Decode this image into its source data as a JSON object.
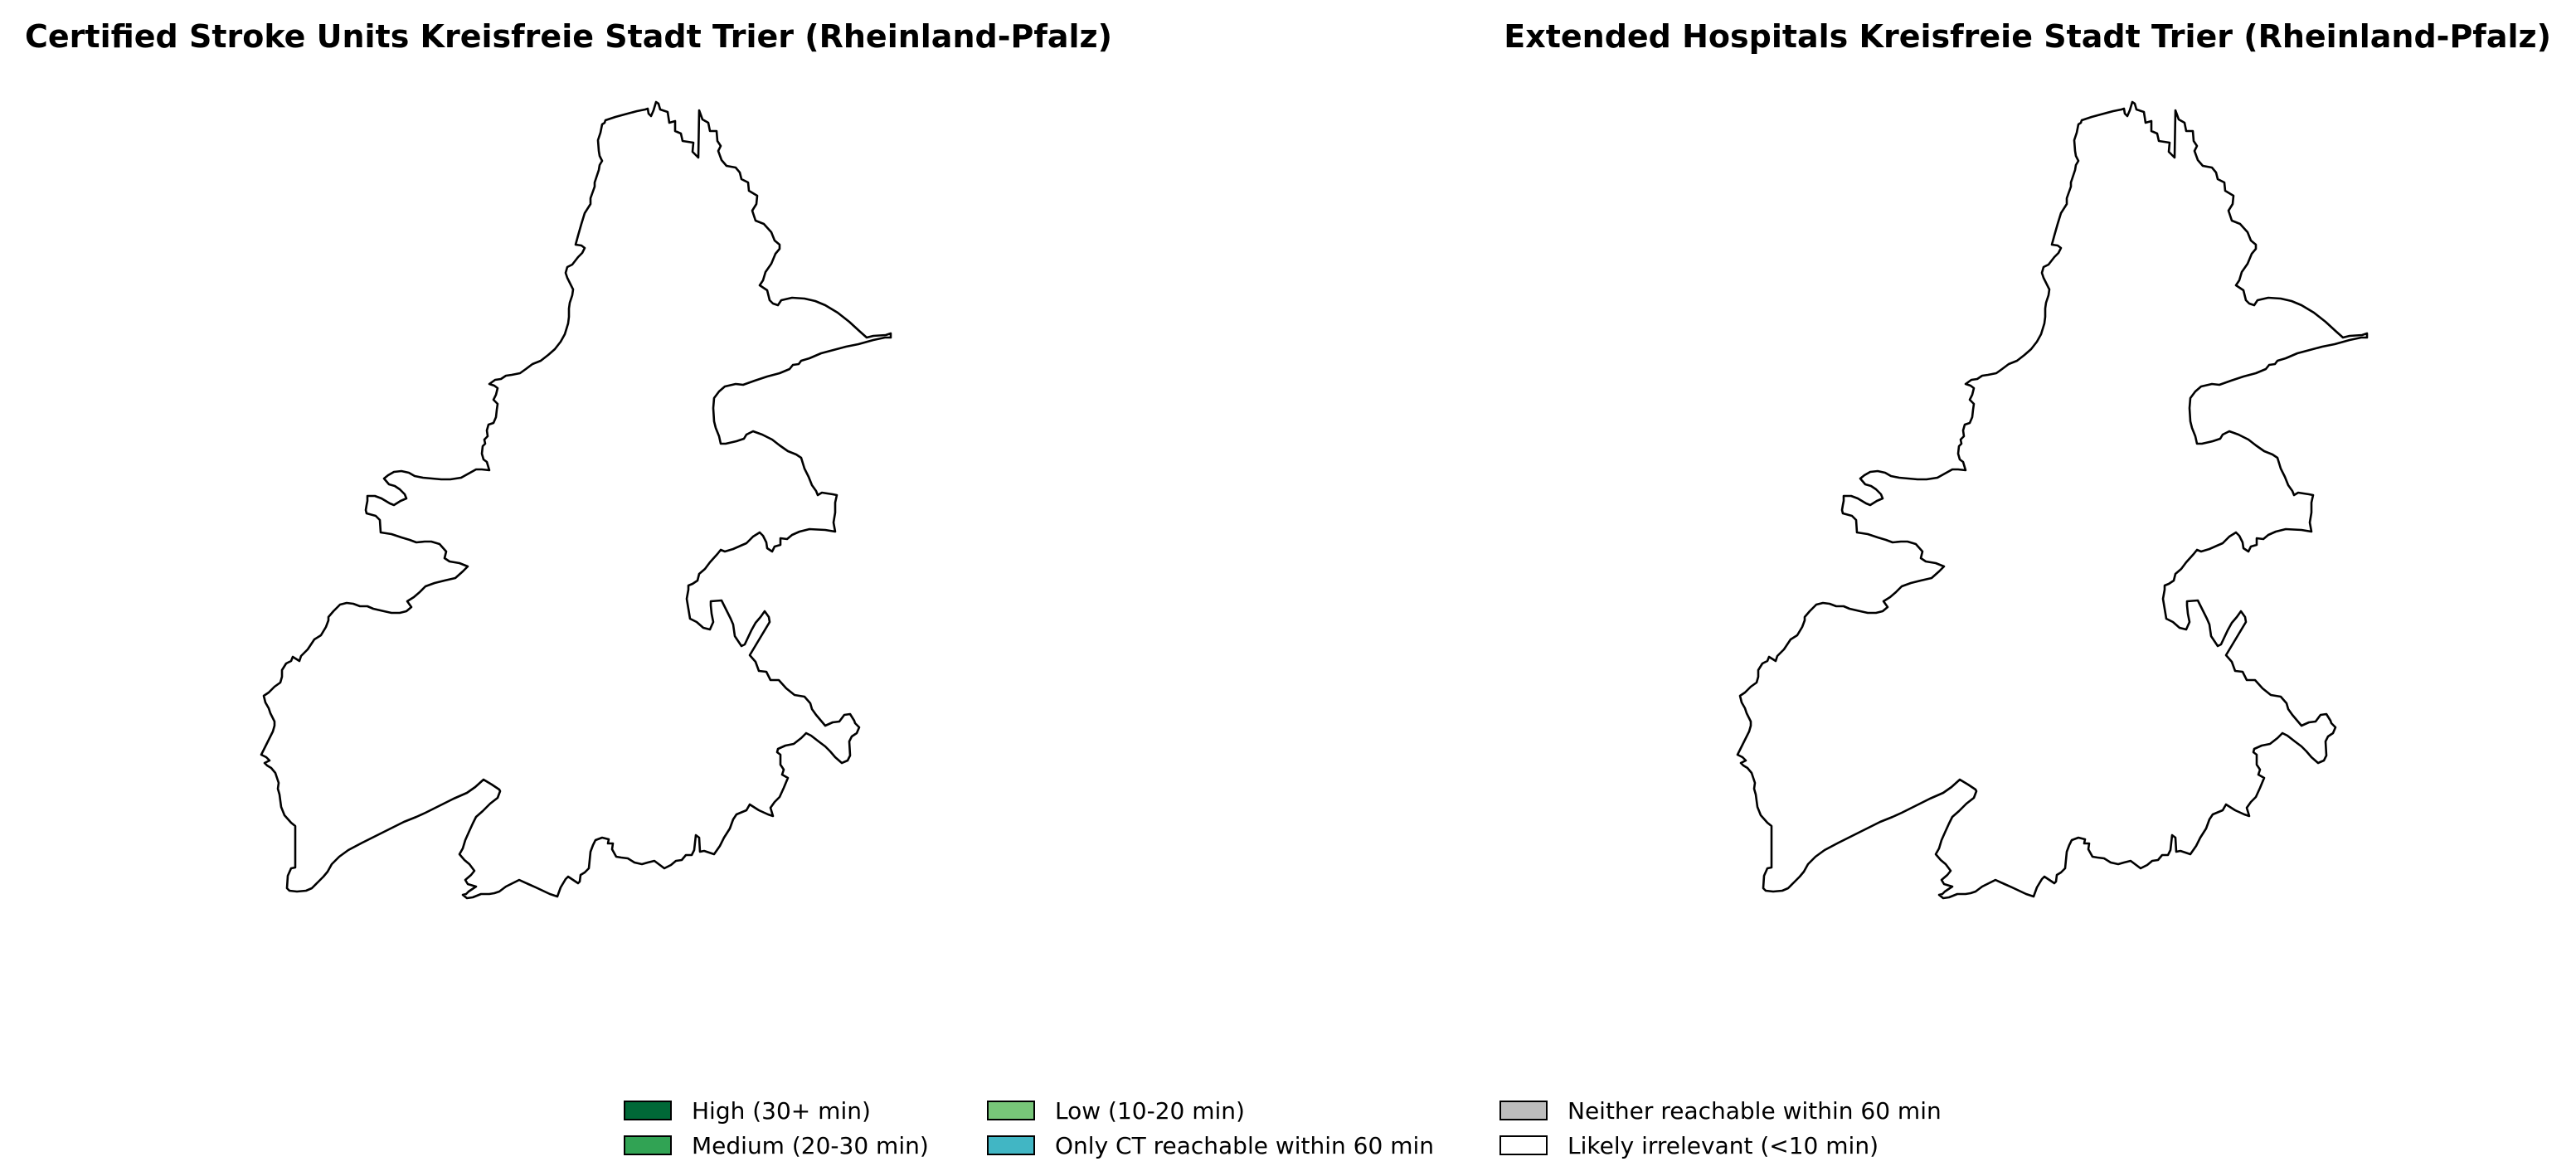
{
  "maps": [
    {
      "title": "Certified Stroke Units Kreisfreie Stadt Trier (Rheinland-Pfalz)",
      "region": "Kreisfreie Stadt Trier",
      "fill_color": "#ffffff",
      "outline_color": "#000000"
    },
    {
      "title": "Extended Hospitals Kreisfreie Stadt Trier (Rheinland-Pfalz)",
      "region": "Kreisfreie Stadt Trier",
      "fill_color": "#ffffff",
      "outline_color": "#000000"
    }
  ],
  "legend": {
    "items": [
      {
        "label": "High (30+ min)",
        "color": "#006837"
      },
      {
        "label": "Medium (20-30 min)",
        "color": "#31a354"
      },
      {
        "label": "Low (10-20 min)",
        "color": "#78c679"
      },
      {
        "label": "Only CT reachable within 60 min",
        "color": "#41b6c4"
      },
      {
        "label": "Neither reachable within 60 min",
        "color": "#bdbdbd"
      },
      {
        "label": "Likely irrelevant (<10 min)",
        "color": "#ffffff"
      }
    ]
  }
}
